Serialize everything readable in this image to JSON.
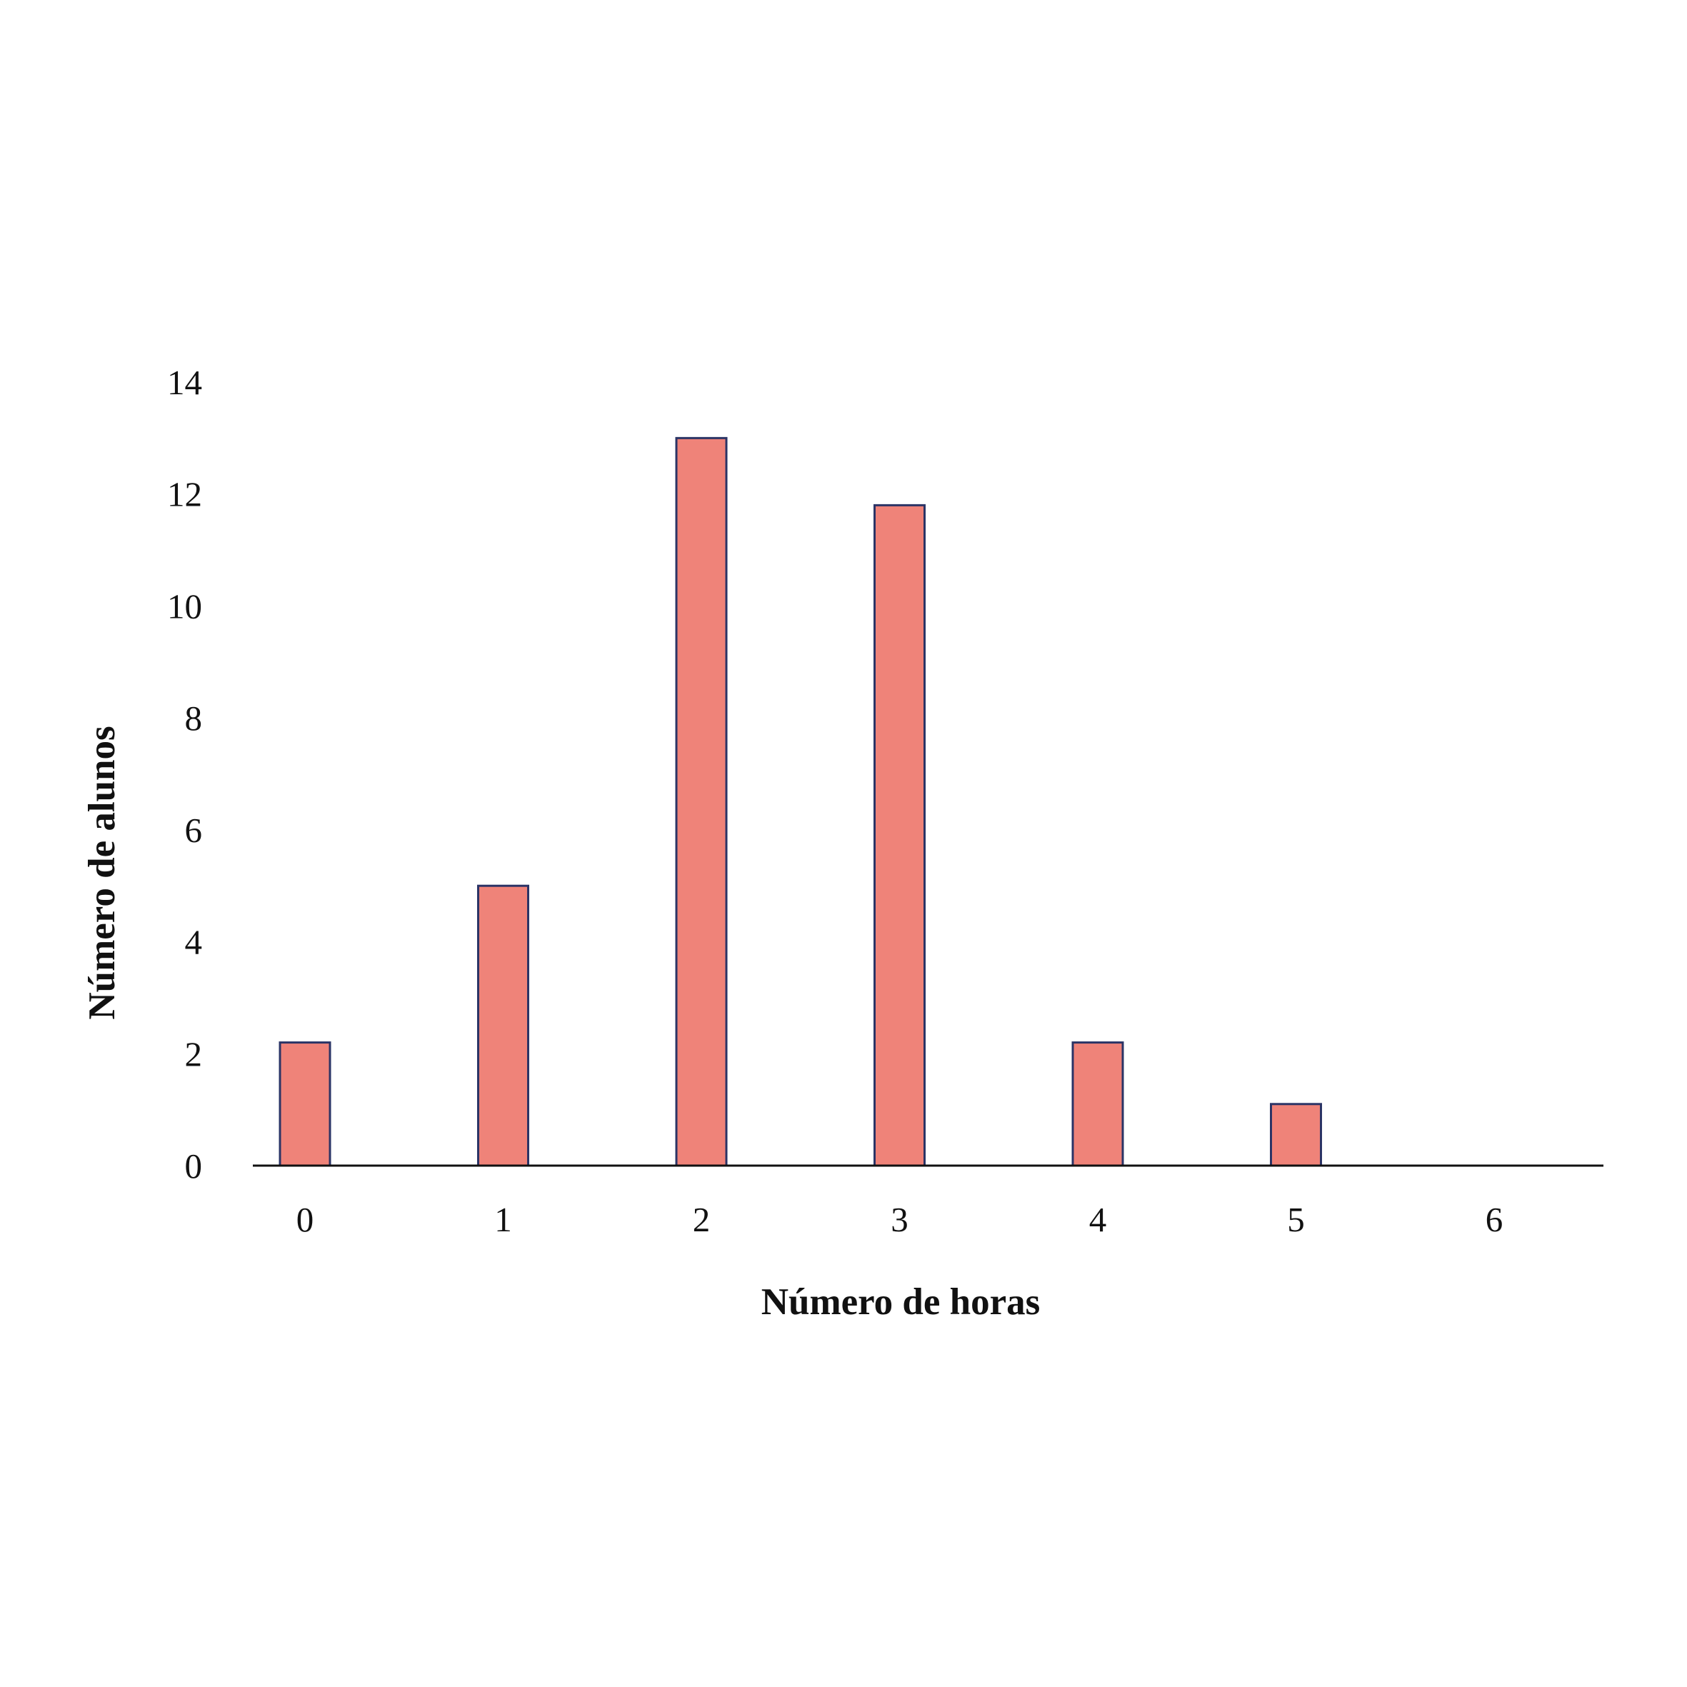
{
  "chart_data": {
    "type": "bar",
    "title": "",
    "xlabel": "Número de horas",
    "ylabel": "Número de alunos",
    "categories": [
      "0",
      "1",
      "2",
      "3",
      "4",
      "5",
      "6"
    ],
    "values": [
      2.2,
      5,
      13,
      11.8,
      2.2,
      1.1,
      0
    ],
    "ylim": [
      0,
      14
    ],
    "yticks": [
      "0",
      "2",
      "4",
      "6",
      "8",
      "10",
      "12",
      "14"
    ],
    "grid": false,
    "legend": "none",
    "bar_color": "#ef8379",
    "bar_edge_color": "#2b3466",
    "axis_color": "#111111"
  }
}
